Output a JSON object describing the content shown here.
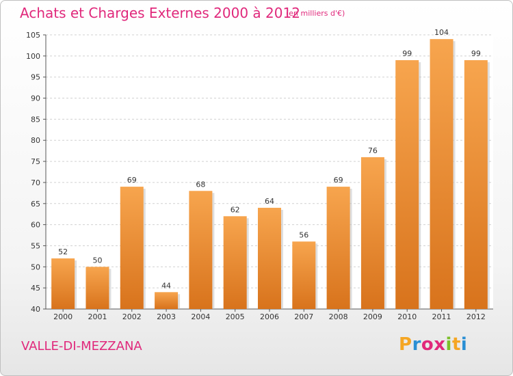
{
  "chart_data": {
    "type": "bar",
    "title": "Achats et Charges Externes 2000 à 2012",
    "subtitle": "(en milliers d'€)",
    "categories": [
      "2000",
      "2001",
      "2002",
      "2003",
      "2004",
      "2005",
      "2006",
      "2007",
      "2008",
      "2009",
      "2010",
      "2011",
      "2012"
    ],
    "values": [
      52,
      50,
      69,
      44,
      68,
      62,
      64,
      56,
      69,
      76,
      99,
      104,
      99
    ],
    "ylim": [
      40,
      105
    ],
    "yticks": [
      40,
      45,
      50,
      55,
      60,
      65,
      70,
      75,
      80,
      85,
      90,
      95,
      100,
      105
    ],
    "xlabel": "",
    "ylabel": "",
    "grid": true,
    "bar_color_light": "#f7a54e",
    "bar_color_dark": "#d8731c"
  },
  "footer": {
    "location": "VALLE-DI-MEZZANA",
    "logo_letters": [
      "P",
      "r",
      "o",
      "x",
      "i",
      "t",
      "i"
    ],
    "logo_colors": [
      "#f5a623",
      "#2a8fd4",
      "#e0287b",
      "#e0287b",
      "#7bbf2a",
      "#f5a623",
      "#2a8fd4"
    ]
  },
  "colors": {
    "accent": "#e0287b"
  }
}
